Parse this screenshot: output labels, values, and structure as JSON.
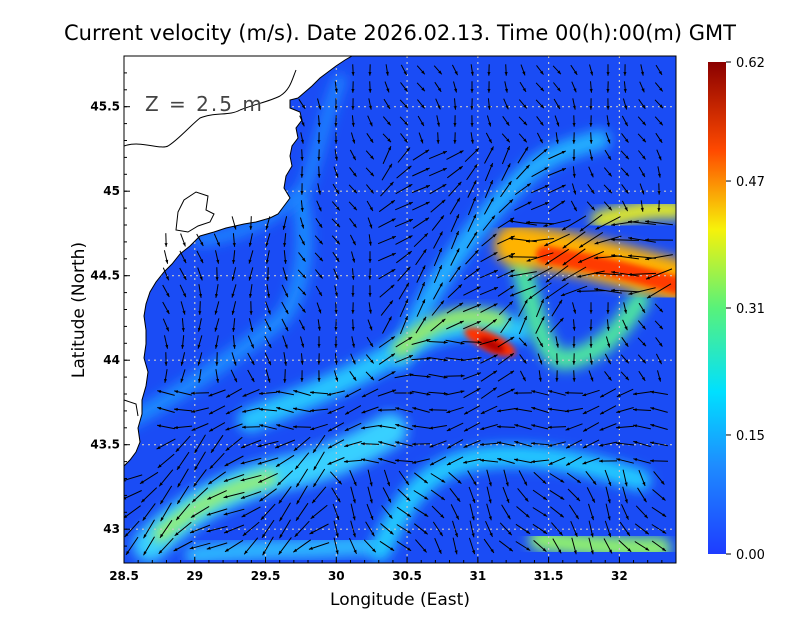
{
  "title": "Current velocity (m/s). Date 2026.02.13. Time 00(h):00(m) GMT",
  "depth_label": "Z = 2.5 m",
  "colors": {
    "sea_low": "#1a4cf5",
    "land": "#ffffff",
    "coastline": "#000000",
    "arrow": "#000000"
  },
  "colorbar": {
    "min": 0.0,
    "max": 0.62,
    "tick_labels": [
      "0.62",
      "0.47",
      "0.31",
      "0.15",
      "0.00"
    ],
    "tick_values": [
      0.62,
      0.47,
      0.31,
      0.15,
      0.0
    ],
    "colormap": "jet"
  },
  "chart_data": {
    "type": "heatmap",
    "title": "Current velocity (m/s). Date 2026.02.13. Time 00(h):00(m) GMT",
    "xlabel": "Longitude (East)",
    "ylabel": "Latitude (North)",
    "xlim": [
      28.5,
      32.4
    ],
    "ylim": [
      42.8,
      45.8
    ],
    "x_ticks": [
      28.5,
      29,
      29.5,
      30,
      30.5,
      31,
      31.5,
      32
    ],
    "x_tick_labels": [
      "28.5",
      "29",
      "29.5",
      "30",
      "30.5",
      "31",
      "31.5",
      "32"
    ],
    "y_ticks": [
      43,
      43.5,
      44,
      44.5,
      45,
      45.5
    ],
    "y_tick_labels": [
      "43",
      "43.5",
      "44",
      "44.5",
      "45",
      "45.5"
    ],
    "grid": true,
    "value_range": [
      0.0,
      0.62
    ],
    "units": "m/s",
    "overlay": "velocity vector arrows",
    "high_speed_features": [
      {
        "description": "eastern jet",
        "lon": [
          31.5,
          32.4
        ],
        "lat": [
          44.4,
          44.8
        ],
        "speed": 0.55
      },
      {
        "description": "central core",
        "lon": [
          30.9,
          31.2
        ],
        "lat": [
          44.05,
          44.15
        ],
        "speed": 0.6
      },
      {
        "description": "southwest coastal current",
        "lon": [
          28.6,
          29.8
        ],
        "lat": [
          42.85,
          43.3
        ],
        "speed": 0.3
      },
      {
        "description": "southeast band",
        "lon": [
          31.3,
          32.2
        ],
        "lat": [
          42.85,
          43.05
        ],
        "speed": 0.33
      }
    ]
  }
}
